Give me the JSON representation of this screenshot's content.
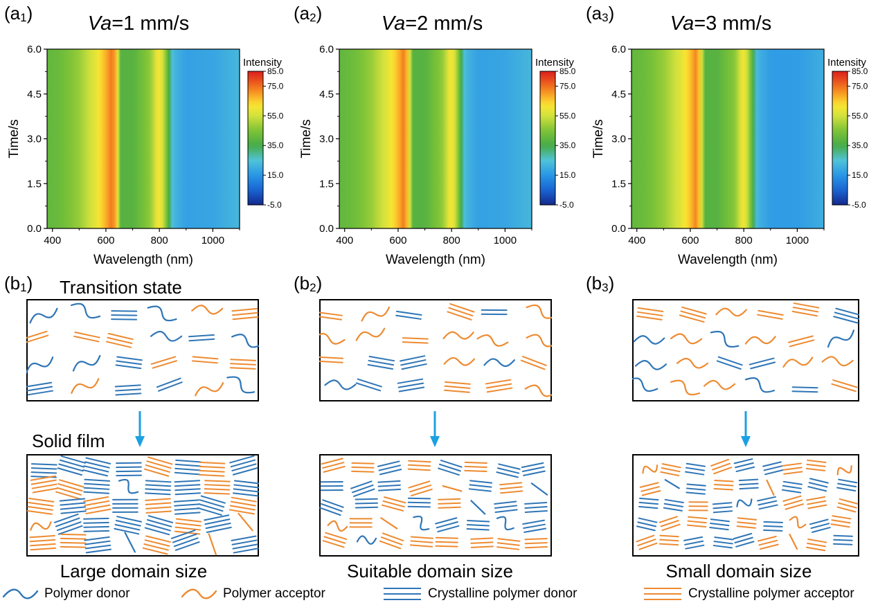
{
  "panel_labels": {
    "a1": {
      "main": "(a",
      "sub": "1",
      "close": ")"
    },
    "a2": {
      "main": "(a",
      "sub": "2",
      "close": ")"
    },
    "a3": {
      "main": "(a",
      "sub": "3",
      "close": ")"
    },
    "b1": {
      "main": "(b",
      "sub": "1",
      "close": ")"
    },
    "b2": {
      "main": "(b",
      "sub": "2",
      "close": ")"
    },
    "b3": {
      "main": "(b",
      "sub": "3",
      "close": ")"
    }
  },
  "chart_titles": [
    {
      "var": "Va",
      "rest": "=1 mm/s"
    },
    {
      "var": "Va",
      "rest": "=2 mm/s"
    },
    {
      "var": "Va",
      "rest": "=3  mm/s"
    }
  ],
  "chart_data": [
    {
      "type": "heatmap",
      "title": "Va=1 mm/s",
      "xlabel": "Wavelength (nm)",
      "ylabel": "Time/s",
      "xlim": [
        380,
        1100
      ],
      "ylim": [
        0.0,
        6.0
      ],
      "xticks": [
        "400",
        "600",
        "800",
        "1000"
      ],
      "yticks": [
        "0.0",
        "1.5",
        "3.0",
        "4.5",
        "6.0"
      ],
      "colorbar": {
        "label": "Intensity",
        "ticks": [
          "85.0",
          "75.0",
          "55.0",
          "35.0",
          "15.0",
          "-5.0"
        ],
        "range": [
          -5.0,
          85.0
        ]
      },
      "profile": {
        "wavelength": [
          380,
          430,
          500,
          560,
          600,
          625,
          640,
          655,
          700,
          770,
          795,
          805,
          820,
          850,
          900,
          1000,
          1100
        ],
        "intensity": [
          40,
          42,
          48,
          58,
          68,
          75,
          65,
          38,
          38,
          48,
          62,
          60,
          50,
          22,
          17,
          18,
          22
        ]
      },
      "peak_shift": [
        0,
        0
      ]
    },
    {
      "type": "heatmap",
      "title": "Va=2 mm/s",
      "xlabel": "Wavelength (nm)",
      "ylabel": "Time/s",
      "xlim": [
        380,
        1100
      ],
      "ylim": [
        0.0,
        6.0
      ],
      "xticks": [
        "400",
        "600",
        "800",
        "1000"
      ],
      "yticks": [
        "0.0",
        "1.5",
        "3.0",
        "4.5",
        "6.0"
      ],
      "colorbar": {
        "label": "Intensity",
        "ticks": [
          "85.0",
          "75.0",
          "55.0",
          "35.0",
          "15.0",
          "-5.0"
        ],
        "range": [
          -5.0,
          85.0
        ]
      },
      "profile": {
        "wavelength": [
          380,
          430,
          500,
          560,
          600,
          622,
          640,
          655,
          700,
          770,
          795,
          805,
          820,
          850,
          900,
          1000,
          1100
        ],
        "intensity": [
          40,
          42,
          48,
          58,
          67,
          74,
          62,
          38,
          38,
          48,
          62,
          60,
          50,
          22,
          17,
          18,
          22
        ]
      },
      "peak_shift": [
        0,
        0
      ]
    },
    {
      "type": "heatmap",
      "title": "Va=3  mm/s",
      "xlabel": "Wavelength (nm)",
      "ylabel": "Time/s",
      "xlim": [
        380,
        1100
      ],
      "ylim": [
        0.0,
        6.0
      ],
      "xticks": [
        "400",
        "600",
        "800",
        "1000"
      ],
      "yticks": [
        "0.0",
        "1.5",
        "3.0",
        "4.5",
        "6.0"
      ],
      "colorbar": {
        "label": "Intensity",
        "ticks": [
          "85.0",
          "75.0",
          "55.0",
          "35.0",
          "15.0",
          "-5.0"
        ],
        "range": [
          -5.0,
          85.0
        ]
      },
      "profile": {
        "wavelength": [
          380,
          430,
          500,
          560,
          600,
          622,
          640,
          655,
          700,
          770,
          795,
          805,
          820,
          850,
          900,
          1000,
          1100
        ],
        "intensity": [
          40,
          42,
          48,
          57,
          66,
          73,
          60,
          38,
          38,
          47,
          61,
          59,
          49,
          21,
          16,
          16,
          20
        ]
      },
      "peak_shift": [
        0,
        0
      ]
    }
  ],
  "schematic": {
    "transition_label": "Transition state",
    "solid_label": "Solid film",
    "domain_labels": [
      "Large domain size",
      "Suitable domain size",
      "Small domain size"
    ]
  },
  "legend": [
    {
      "name": "Polymer donor",
      "kind": "wave",
      "color": "#2e75b6"
    },
    {
      "name": "Polymer acceptor",
      "kind": "wave",
      "color": "#ed8a30"
    },
    {
      "name": "Crystalline polymer donor",
      "kind": "lines",
      "color": "#2e75b6"
    },
    {
      "name": "Crystalline polymer acceptor",
      "kind": "lines",
      "color": "#ed8a30"
    }
  ],
  "colors": {
    "donor": "#2e75b6",
    "acceptor": "#ed8a30",
    "arrow": "#1ba1e2"
  }
}
